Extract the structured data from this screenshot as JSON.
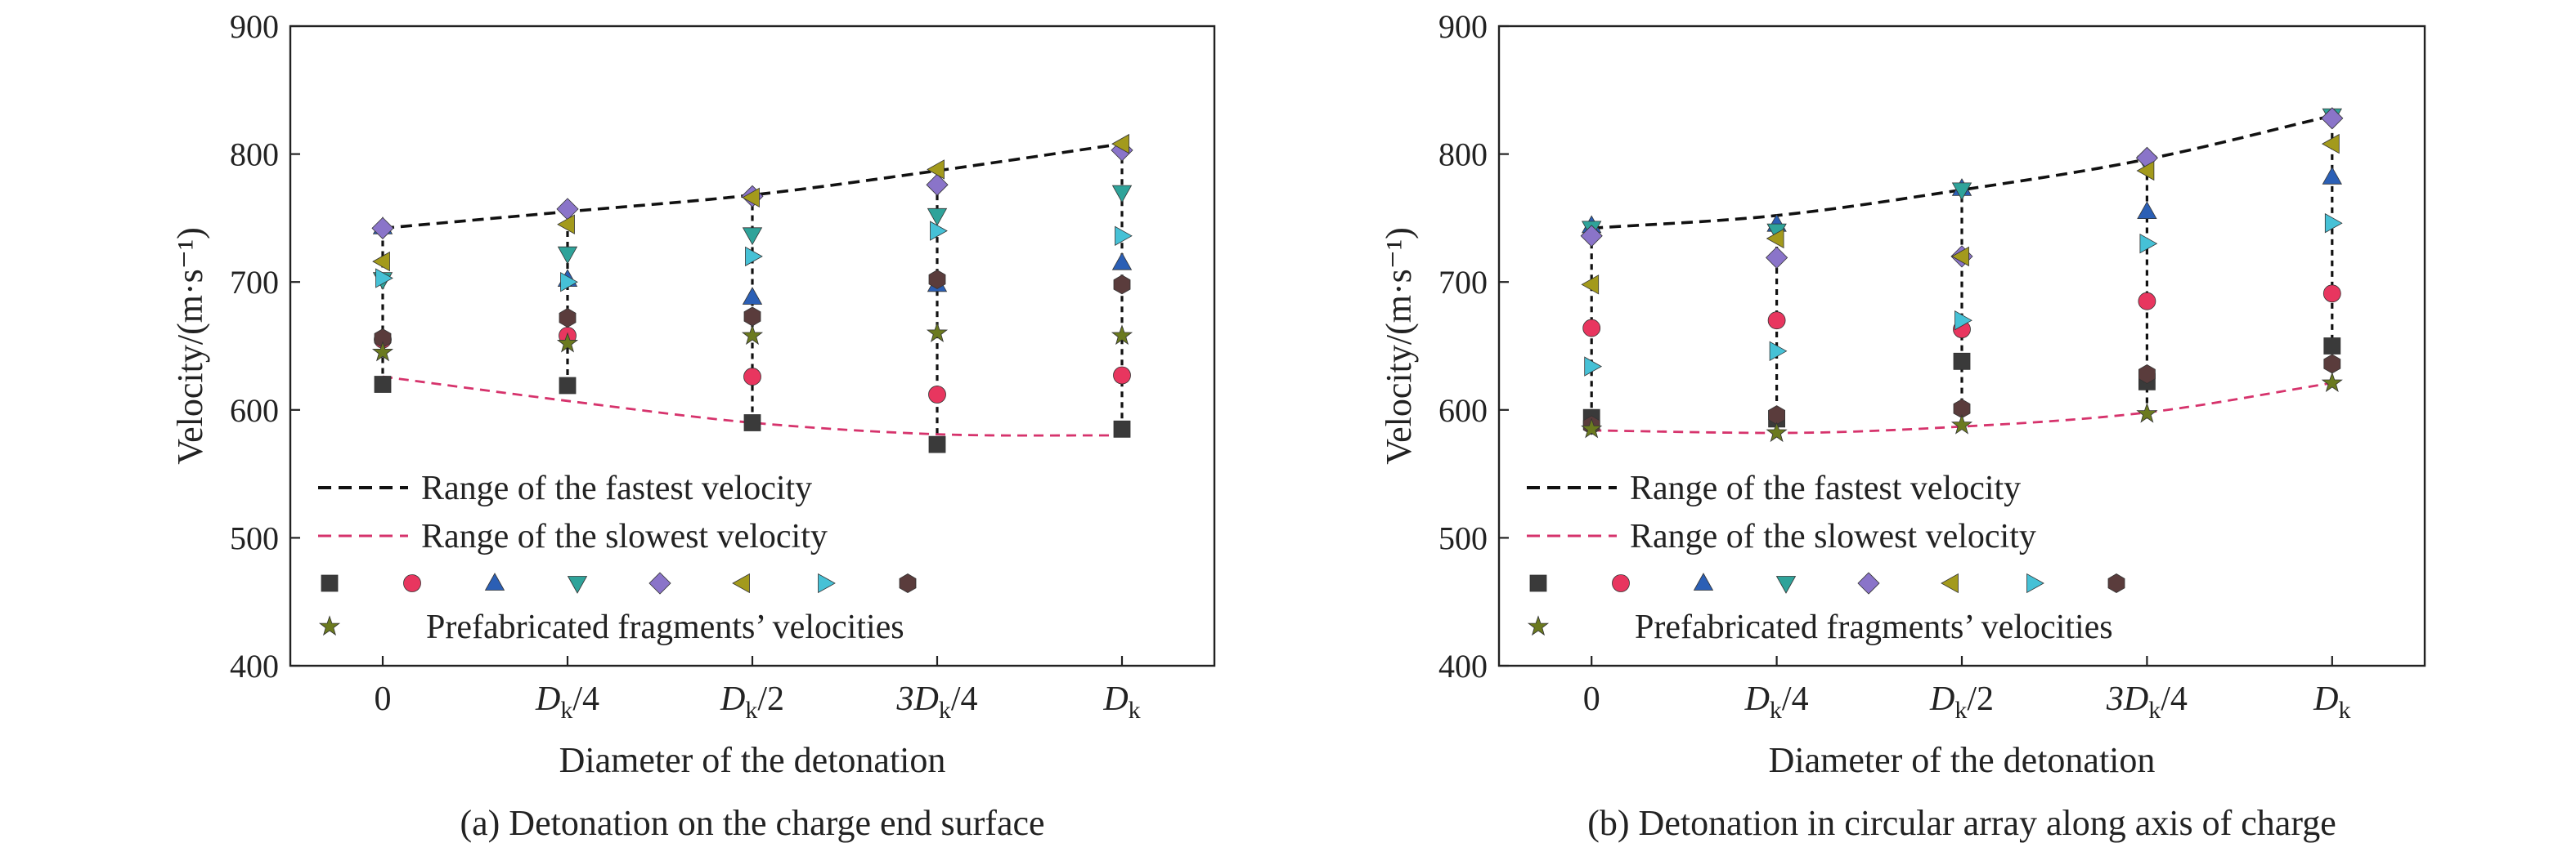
{
  "chart_data": [
    {
      "type": "scatter",
      "caption": "(a) Detonation on the charge end surface",
      "xlabel": "Diameter of the detonation",
      "ylabel": "Velocity/(m·s⁻¹)",
      "ylim": [
        400,
        900
      ],
      "yticks": [
        400,
        500,
        600,
        700,
        800,
        900
      ],
      "categories": [
        {
          "main": "0",
          "sub": ""
        },
        {
          "main": "D",
          "sub": "k",
          "suffix": "/4"
        },
        {
          "main": "D",
          "sub": "k",
          "suffix": "/2"
        },
        {
          "main": "3D",
          "sub": "k",
          "suffix": "/4"
        },
        {
          "main": "D",
          "sub": "k",
          "suffix": ""
        }
      ],
      "lines": [
        {
          "name": "Range of the fastest velocity",
          "color": "#111111",
          "dash": "fast",
          "values": [
            742,
            755,
            768,
            787,
            808
          ]
        },
        {
          "name": "Range of the slowest velocity",
          "color": "#d6336c",
          "dash": "slow",
          "values": [
            626,
            607,
            590,
            581,
            580
          ]
        }
      ],
      "series": [
        {
          "marker": "square",
          "color": "#3a3a3a",
          "values": [
            620,
            619,
            590,
            573,
            585
          ]
        },
        {
          "marker": "circle",
          "color": "#e8365f",
          "values": [
            655,
            658,
            626,
            612,
            627
          ]
        },
        {
          "marker": "triangle-up",
          "color": "#2b5fb5",
          "values": [
            743,
            702,
            688,
            698,
            715
          ]
        },
        {
          "marker": "triangle-down",
          "color": "#2fa39a",
          "values": [
            702,
            722,
            737,
            752,
            770
          ]
        },
        {
          "marker": "diamond",
          "color": "#8a74c9",
          "values": [
            742,
            757,
            767,
            776,
            803
          ]
        },
        {
          "marker": "triangle-left",
          "color": "#a39a1c",
          "values": [
            716,
            745,
            766,
            788,
            808
          ]
        },
        {
          "marker": "triangle-right",
          "color": "#46c1d6",
          "values": [
            703,
            700,
            720,
            740,
            736
          ]
        },
        {
          "marker": "hexagon",
          "color": "#5a3c3c",
          "values": [
            656,
            672,
            673,
            702,
            698
          ]
        },
        {
          "marker": "star",
          "color": "#6b7a1f",
          "values": [
            645,
            652,
            658,
            660,
            658
          ]
        }
      ],
      "legend": {
        "fast_label": "Range of the fastest velocity",
        "slow_label": "Range of the slowest velocity",
        "fragments_label": "Prefabricated fragments’ velocities"
      }
    },
    {
      "type": "scatter",
      "caption": "(b) Detonation in circular array along axis of charge",
      "xlabel": "Diameter of the detonation",
      "ylabel": "Velocity/(m·s⁻¹)",
      "ylim": [
        400,
        900
      ],
      "yticks": [
        400,
        500,
        600,
        700,
        800,
        900
      ],
      "categories": [
        {
          "main": "0",
          "sub": ""
        },
        {
          "main": "D",
          "sub": "k",
          "suffix": "/4"
        },
        {
          "main": "D",
          "sub": "k",
          "suffix": "/2"
        },
        {
          "main": "3D",
          "sub": "k",
          "suffix": "/4"
        },
        {
          "main": "D",
          "sub": "k",
          "suffix": ""
        }
      ],
      "lines": [
        {
          "name": "Range of the fastest velocity",
          "color": "#111111",
          "dash": "fast",
          "values": [
            742,
            752,
            772,
            796,
            830
          ]
        },
        {
          "name": "Range of the slowest velocity",
          "color": "#d6336c",
          "dash": "slow",
          "values": [
            584,
            582,
            587,
            598,
            621
          ]
        }
      ],
      "series": [
        {
          "marker": "square",
          "color": "#3a3a3a",
          "values": [
            594,
            593,
            638,
            622,
            650
          ]
        },
        {
          "marker": "circle",
          "color": "#e8365f",
          "values": [
            664,
            670,
            663,
            685,
            691
          ]
        },
        {
          "marker": "triangle-up",
          "color": "#2b5fb5",
          "values": [
            744,
            745,
            773,
            755,
            782
          ]
        },
        {
          "marker": "triangle-down",
          "color": "#2fa39a",
          "values": [
            742,
            740,
            772,
            793,
            830
          ]
        },
        {
          "marker": "diamond",
          "color": "#8a74c9",
          "values": [
            736,
            719,
            720,
            797,
            828
          ]
        },
        {
          "marker": "triangle-left",
          "color": "#a39a1c",
          "values": [
            698,
            734,
            720,
            787,
            808
          ]
        },
        {
          "marker": "triangle-right",
          "color": "#46c1d6",
          "values": [
            634,
            646,
            670,
            730,
            746
          ]
        },
        {
          "marker": "hexagon",
          "color": "#5a3c3c",
          "values": [
            588,
            596,
            601,
            628,
            636
          ]
        },
        {
          "marker": "star",
          "color": "#6b7a1f",
          "values": [
            585,
            582,
            588,
            597,
            621
          ]
        }
      ],
      "legend": {
        "fast_label": "Range of the fastest velocity",
        "slow_label": "Range of the slowest velocity",
        "fragments_label": "Prefabricated fragments’ velocities"
      }
    }
  ]
}
